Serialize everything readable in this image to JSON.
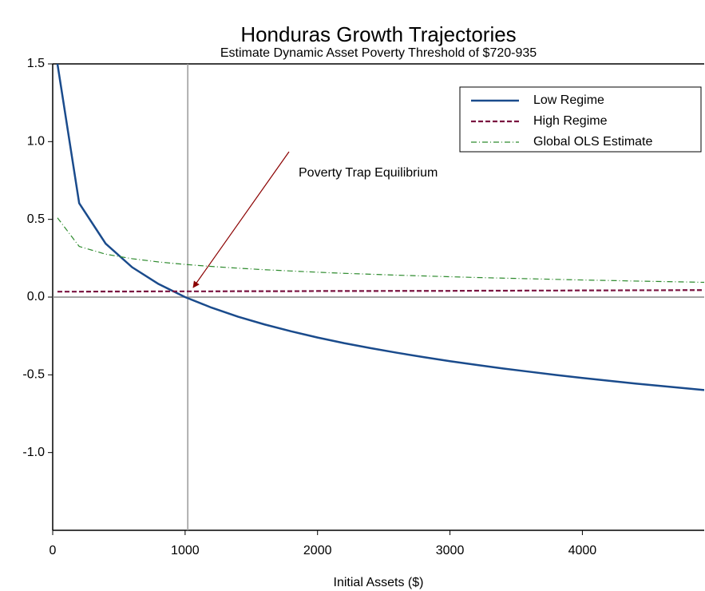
{
  "chart_data": {
    "type": "line",
    "title": "Honduras Growth Trajectories",
    "subtitle": "Estimate Dynamic Asset Poverty Threshold of $720-935",
    "x_label": "Initial Assets ($)",
    "annotation": "Poverty Trap Equilibrium",
    "vline": 1020,
    "x": [
      36,
      200,
      400,
      600,
      800,
      1000,
      1200,
      1400,
      1600,
      1800,
      2000,
      2200,
      2400,
      2600,
      2800,
      3000,
      3200,
      3400,
      3600,
      3800,
      4000,
      4200,
      4400,
      4600,
      4800,
      4920
    ],
    "series": [
      {
        "name": "Low Regime",
        "color": "#1a4b8c",
        "dash": "solid",
        "values": [
          1.5,
          0.604,
          0.344,
          0.192,
          0.084,
          0.0,
          -0.068,
          -0.126,
          -0.176,
          -0.22,
          -0.26,
          -0.296,
          -0.328,
          -0.358,
          -0.386,
          -0.412,
          -0.436,
          -0.459,
          -0.48,
          -0.501,
          -0.52,
          -0.538,
          -0.556,
          -0.572,
          -0.588,
          -0.598
        ]
      },
      {
        "name": "High Regime",
        "color": "#7a1340",
        "dash": "dashed",
        "values": [
          0.035,
          0.035,
          0.036,
          0.036,
          0.037,
          0.037,
          0.037,
          0.038,
          0.038,
          0.038,
          0.039,
          0.039,
          0.039,
          0.04,
          0.04,
          0.04,
          0.041,
          0.041,
          0.042,
          0.042,
          0.043,
          0.043,
          0.044,
          0.044,
          0.045,
          0.045
        ]
      },
      {
        "name": "Global OLS Estimate",
        "color": "#2e8b2e",
        "dash": "dashdot",
        "values": [
          0.51,
          0.326,
          0.276,
          0.247,
          0.226,
          0.21,
          0.197,
          0.186,
          0.176,
          0.168,
          0.16,
          0.153,
          0.147,
          0.141,
          0.136,
          0.131,
          0.126,
          0.122,
          0.118,
          0.114,
          0.11,
          0.107,
          0.103,
          0.1,
          0.097,
          0.095
        ]
      }
    ],
    "xlim": [
      0,
      4920
    ],
    "xticks": [
      0,
      1000,
      2000,
      3000,
      4000
    ],
    "ylim": [
      -1.5,
      1.5
    ],
    "yticks": [
      {
        "value": -1.0,
        "label": "-1.0"
      },
      -0.5,
      {
        "value": 0.0,
        "label": "0.0"
      },
      0.5,
      {
        "value": 1.0,
        "label": "1.0"
      },
      1.5
    ],
    "legend": "upper right"
  }
}
